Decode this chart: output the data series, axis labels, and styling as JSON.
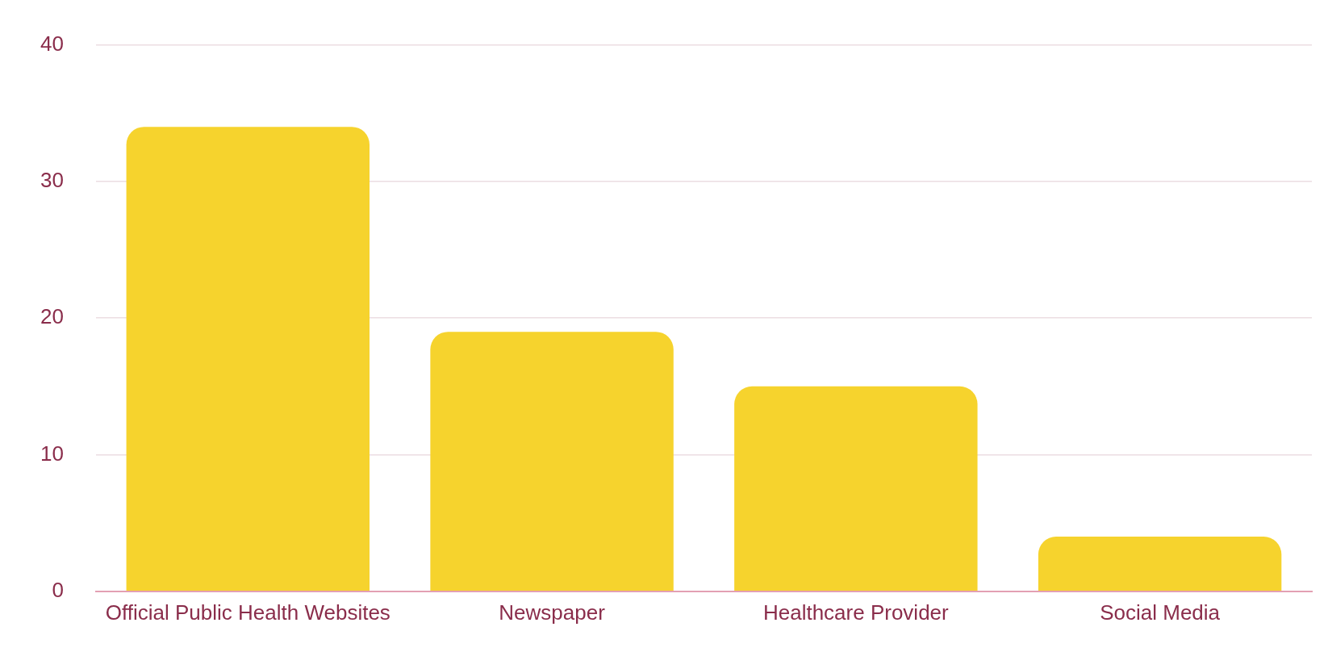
{
  "chart_data": {
    "type": "bar",
    "categories": [
      "Official Public Health Websites",
      "Newspaper",
      "Healthcare Provider",
      "Social Media"
    ],
    "values": [
      34,
      19,
      15,
      4
    ],
    "color": "#f6d32d",
    "ylim": [
      0,
      40
    ],
    "yticks": [
      0,
      10,
      20,
      30,
      40
    ],
    "grid": "y"
  }
}
